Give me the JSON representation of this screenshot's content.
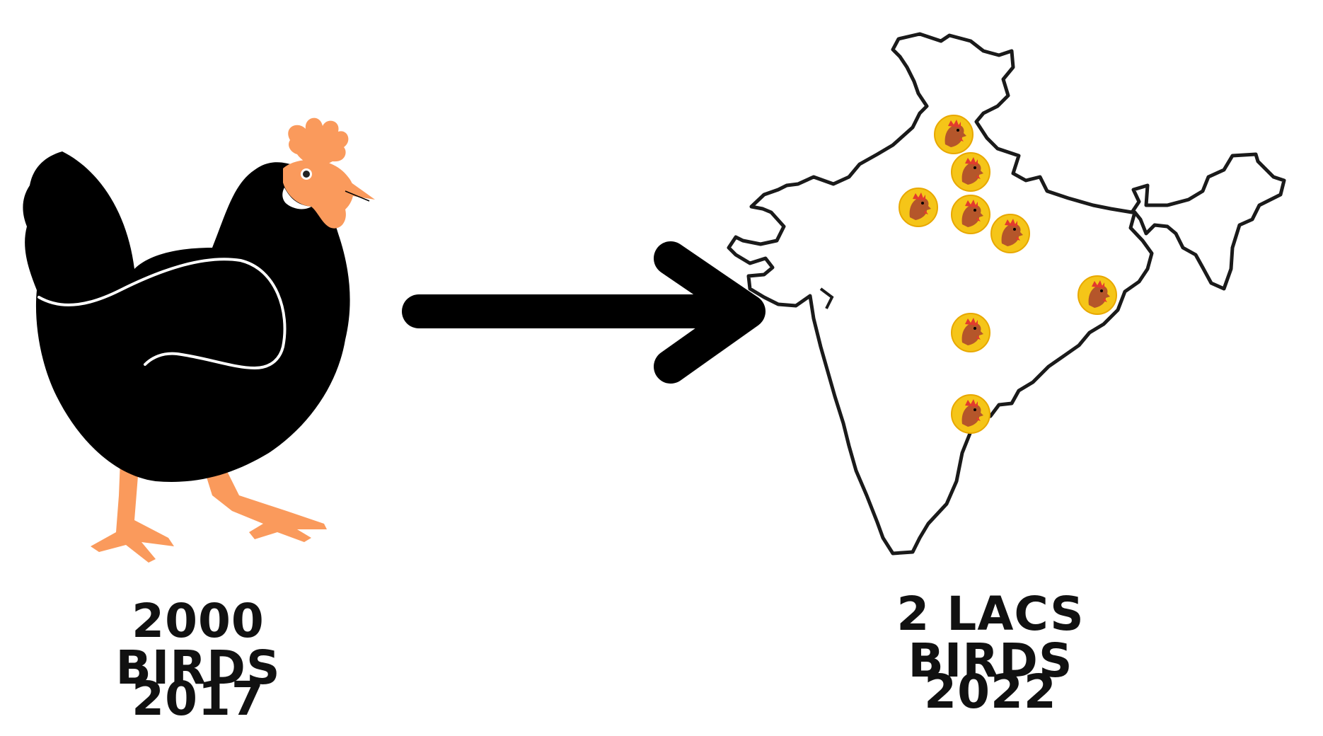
{
  "left": {
    "title": "2000 BIRDS",
    "year": "2017",
    "icon": "hen-icon"
  },
  "right": {
    "title": "2 LACS BIRDS",
    "year": "2022",
    "icon": "india-map-icon",
    "marker_icon": "rooster-head-icon"
  },
  "arrow": {
    "icon": "arrow-right-icon"
  },
  "colors": {
    "background": "#ffffff",
    "ink": "#000000",
    "comb_and_legs": "#fa9a5c",
    "marker_fill": "#f5c518",
    "marker_head": "#b5562a"
  }
}
